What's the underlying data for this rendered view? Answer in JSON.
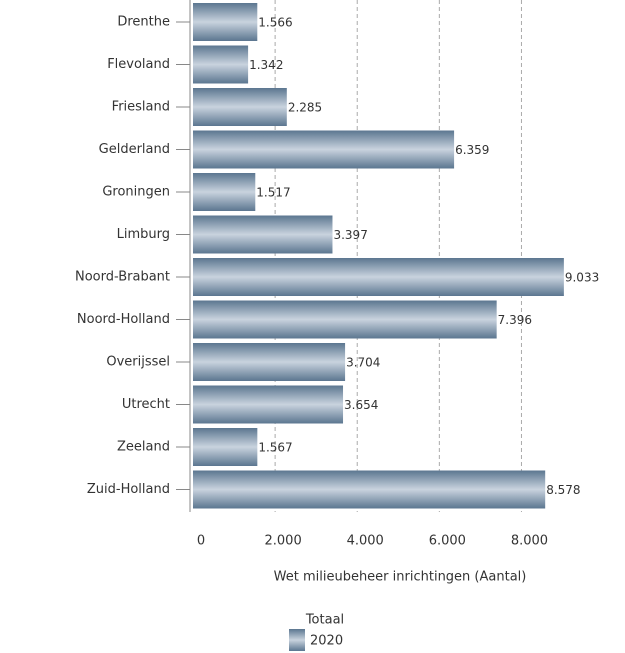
{
  "chart_data": {
    "type": "bar",
    "orientation": "horizontal",
    "categories": [
      "Drenthe",
      "Flevoland",
      "Friesland",
      "Gelderland",
      "Groningen",
      "Limburg",
      "Noord-Brabant",
      "Noord-Holland",
      "Overijssel",
      "Utrecht",
      "Zeeland",
      "Zuid-Holland"
    ],
    "series": [
      {
        "name": "2020",
        "color": "#5b7690",
        "values": [
          1566,
          1342,
          2285,
          6359,
          1517,
          3397,
          9033,
          7396,
          3704,
          3654,
          1567,
          8578
        ],
        "value_labels": [
          "1.566",
          "1.342",
          "2.285",
          "6.359",
          "1.517",
          "3.397",
          "9.033",
          "7.396",
          "3.704",
          "3.654",
          "1.567",
          "8.578"
        ]
      }
    ],
    "xlabel": "Wet milieubeheer inrichtingen (Aantal)",
    "legend_title": "Totaal",
    "xlim": [
      0,
      10400
    ],
    "xticks": [
      0,
      {
        "value": 2000,
        "label": "2.000"
      },
      {
        "value": 4000,
        "label": "4.000"
      },
      {
        "value": 6000,
        "label": "6.000"
      },
      {
        "value": 8000,
        "label": "8.000"
      }
    ],
    "grid": true
  }
}
